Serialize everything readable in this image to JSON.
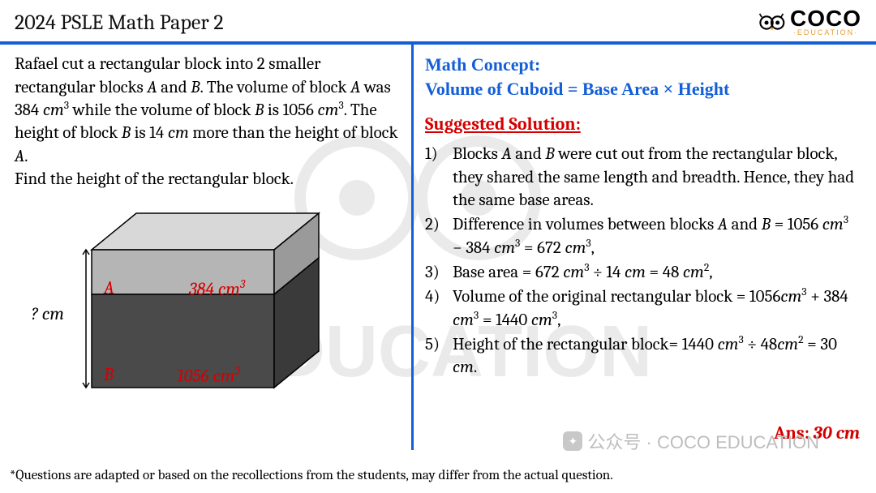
{
  "header": {
    "title": "2024 PSLE Math Paper 2",
    "logo_text": "COCO",
    "logo_sub": "·EDUCATION·"
  },
  "left": {
    "problem_html": "Rafael cut a rectangular block into 2 smaller rectangular blocks <span class='italic'>A</span> and <span class='italic'>B</span>. The volume of block <span class='italic'>A</span> was 384 <span class='italic'>cm</span><sup>3</sup> while the volume of block <span class='italic'>B</span> is 1056 <span class='italic'>cm</span><sup>3</sup>. The height of block <span class='italic'>B</span> is 14 <span class='italic'>cm</span> more than the height of block <span class='italic'>A</span>.<br>Find the height of the rectangular block.",
    "diagram": {
      "qmark": "? cm",
      "labelA": "A",
      "volA_html": "384 <span class='italic'>cm</span><sup>3</sup>",
      "labelB": "B",
      "volB_html": "1056 cm<sup>3</sup>",
      "colors": {
        "top_face": "#d8d8d8",
        "blockA_front": "#b5b5b5",
        "blockA_side": "#9a9a9a",
        "blockB_front": "#4a4a4a",
        "blockB_side": "#3a3a3a",
        "outline": "#000000"
      }
    }
  },
  "right": {
    "concept_label": "Math Concept:",
    "concept_formula": "Volume of Cuboid = Base Area × Height",
    "solution_label": "Suggested Solution:",
    "steps_html": [
      "Blocks <span class='italic'>A</span> and <span class='italic'>B</span> were cut out from the rectangular block, they shared the same length and breadth. Hence, they had the same base areas.",
      "Difference in volumes between blocks <span class='italic'>A</span> and <span class='italic'>B</span> = 1056 <span class='italic'>cm</span><sup>3</sup> − 384 <span class='italic'>cm</span><sup>3</sup> = 672 <span class='italic'>cm</span><sup>3</sup>,",
      "Base area = 672 <span class='italic'>cm</span><sup>3</sup> ÷ 14 <span class='italic'>cm</span> = 48 <span class='italic'>cm</span><sup>2</sup>,",
      "Volume of the original rectangular block = 1056<span class='italic'>cm</span><sup>3</sup> + 384 <span class='italic'>cm</span><sup>3</sup> = 1440 <span class='italic'>cm</span><sup>3</sup>,",
      "Height of the rectangular block= 1440 <span class='italic'>cm</span><sup>3</sup> ÷ 48<span class='italic'>cm</span><sup>2</sup> = 30 <span class='italic'>cm</span>."
    ],
    "answer_label": "Ans:",
    "answer_value_html": "30 <span class='italic'>cm</span>"
  },
  "footer": "*Questions are adapted or based on the recollections from the students, may differ from the actual question.",
  "watermark": "公众号 · COCO EDUCATION"
}
